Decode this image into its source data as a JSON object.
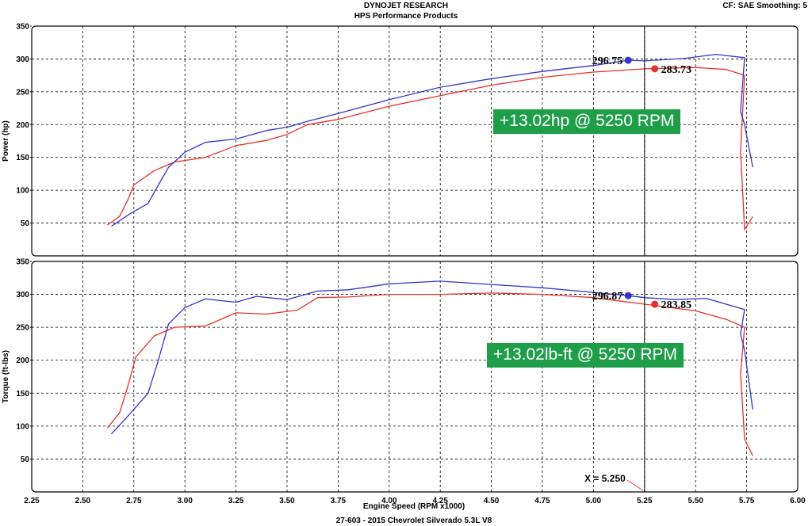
{
  "header": {
    "title": "DYNOJET RESEARCH",
    "subtitle": "HPS Performance Products",
    "settings": "CF: SAE   Smoothing: 5"
  },
  "footer": {
    "xlabel": "Engine Speed (RPM x1000)",
    "vehicle": "27-603 - 2015 Chevrolet Silverado 5.3L V8"
  },
  "cursor": {
    "x": 5.25,
    "label": "X = 5.250"
  },
  "colors": {
    "before": "#e8302b",
    "after": "#3333cc",
    "gain_box": "#1f9e4a"
  },
  "chart_data": [
    {
      "type": "line",
      "ylabel": "Power (hp)",
      "xlim": [
        2.25,
        6.0
      ],
      "ylim": [
        0,
        350
      ],
      "xticks": [
        "2.25",
        "2.50",
        "2.75",
        "3.00",
        "3.25",
        "3.50",
        "3.75",
        "4.00",
        "4.25",
        "4.50",
        "4.75",
        "5.00",
        "5.25",
        "5.50",
        "5.75",
        "6.00"
      ],
      "yticks": [
        "350",
        "300",
        "250",
        "200",
        "150",
        "100",
        "50"
      ],
      "grid": true,
      "annotation": "+13.02hp @ 5250 RPM",
      "peaks": [
        {
          "series": "blue",
          "x": 5.17,
          "y": 298,
          "label": "296.75"
        },
        {
          "series": "red",
          "x": 5.3,
          "y": 285,
          "label": "283.73"
        }
      ],
      "series": [
        {
          "color": "red",
          "x": [
            2.62,
            2.68,
            2.72,
            2.75,
            2.85,
            2.95,
            3.1,
            3.25,
            3.4,
            3.5,
            3.6,
            3.75,
            4.0,
            4.25,
            4.5,
            4.75,
            5.0,
            5.25,
            5.5,
            5.65,
            5.74,
            5.72,
            5.74,
            5.78
          ],
          "y": [
            47,
            60,
            85,
            108,
            130,
            143,
            150,
            168,
            176,
            185,
            200,
            208,
            228,
            244,
            260,
            272,
            280,
            285,
            287,
            284,
            275,
            160,
            40,
            60
          ]
        },
        {
          "color": "blue",
          "x": [
            2.64,
            2.72,
            2.82,
            2.87,
            2.92,
            3.0,
            3.1,
            3.25,
            3.4,
            3.5,
            3.6,
            3.75,
            4.0,
            4.25,
            4.5,
            4.75,
            5.0,
            5.17,
            5.25,
            5.45,
            5.6,
            5.74,
            5.72,
            5.74,
            5.78
          ],
          "y": [
            45,
            62,
            80,
            108,
            135,
            158,
            173,
            178,
            191,
            196,
            205,
            217,
            238,
            257,
            270,
            281,
            290,
            298,
            297,
            301,
            307,
            302,
            220,
            200,
            135
          ]
        }
      ]
    },
    {
      "type": "line",
      "ylabel": "Torque (ft-lbs)",
      "xlim": [
        2.25,
        6.0
      ],
      "ylim": [
        0,
        350
      ],
      "xticks": [
        "2.25",
        "2.50",
        "2.75",
        "3.00",
        "3.25",
        "3.50",
        "3.75",
        "4.00",
        "4.25",
        "4.50",
        "4.75",
        "5.00",
        "5.25",
        "5.50",
        "5.75",
        "6.00"
      ],
      "yticks": [
        "350",
        "300",
        "250",
        "200",
        "150",
        "100",
        "50"
      ],
      "grid": true,
      "annotation": "+13.02lb-ft @ 5250 RPM",
      "peaks": [
        {
          "series": "blue",
          "x": 5.17,
          "y": 298,
          "label": "296.87"
        },
        {
          "series": "red",
          "x": 5.3,
          "y": 285,
          "label": "283.85"
        }
      ],
      "series": [
        {
          "color": "red",
          "x": [
            2.62,
            2.68,
            2.72,
            2.76,
            2.85,
            2.95,
            3.1,
            3.25,
            3.4,
            3.55,
            3.65,
            3.8,
            4.0,
            4.25,
            4.5,
            4.75,
            5.0,
            5.25,
            5.5,
            5.65,
            5.74,
            5.72,
            5.74,
            5.78
          ],
          "y": [
            97,
            120,
            160,
            205,
            237,
            250,
            252,
            272,
            270,
            276,
            295,
            296,
            300,
            300,
            302,
            300,
            295,
            285,
            275,
            262,
            250,
            180,
            80,
            55
          ]
        },
        {
          "color": "blue",
          "x": [
            2.64,
            2.72,
            2.82,
            2.87,
            2.92,
            3.0,
            3.1,
            3.25,
            3.35,
            3.5,
            3.65,
            3.8,
            4.0,
            4.25,
            4.5,
            4.75,
            5.0,
            5.17,
            5.25,
            5.4,
            5.55,
            5.74,
            5.72,
            5.74,
            5.78
          ],
          "y": [
            88,
            115,
            150,
            200,
            255,
            280,
            293,
            288,
            297,
            292,
            305,
            307,
            316,
            320,
            315,
            310,
            303,
            298,
            295,
            292,
            294,
            277,
            240,
            215,
            125
          ]
        }
      ]
    }
  ]
}
